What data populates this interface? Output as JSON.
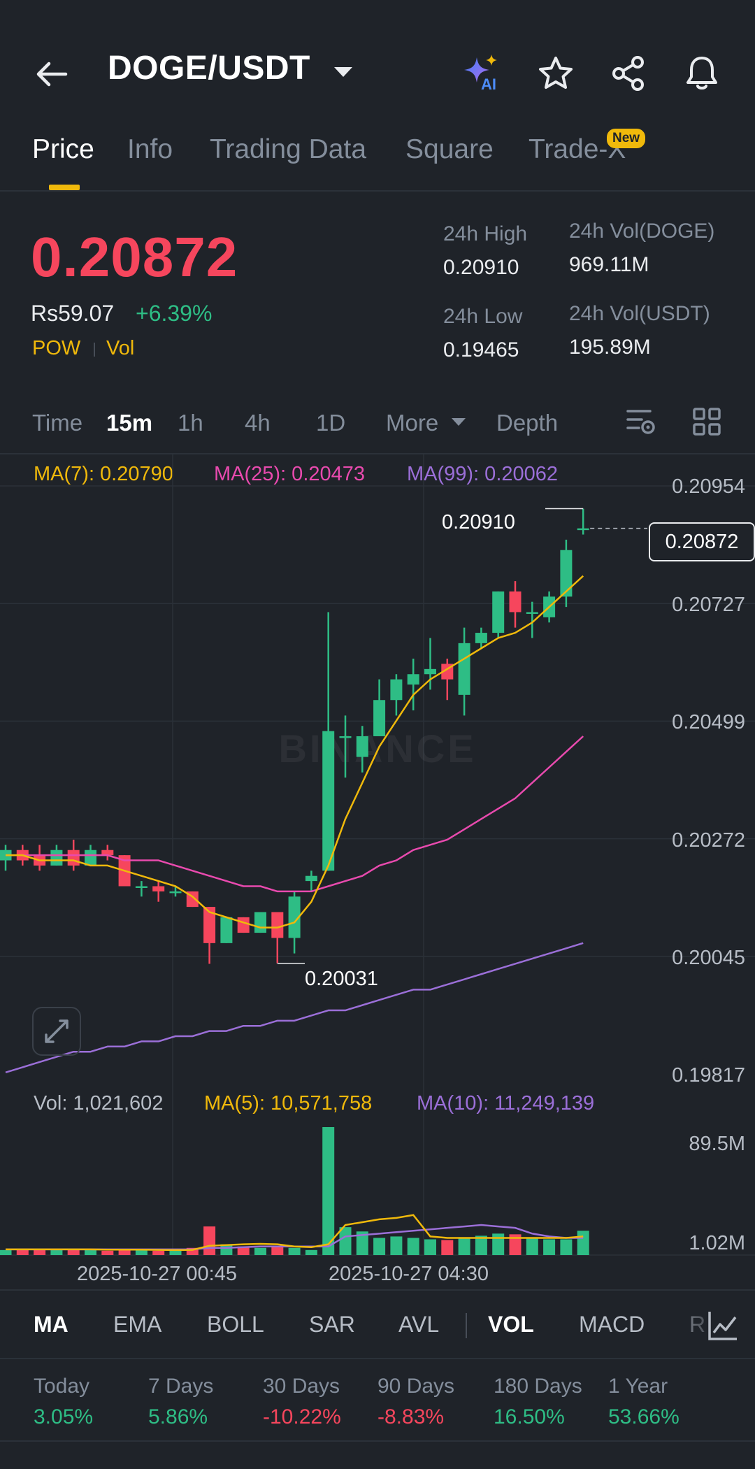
{
  "header": {
    "pair": "DOGE/USDT",
    "ai_label": "AI",
    "icons": [
      "back-arrow-icon",
      "chevron-down-icon",
      "ai-sparkle-icon",
      "star-icon",
      "share-icon",
      "bell-icon"
    ]
  },
  "tabs": [
    {
      "label": "Price",
      "active": true
    },
    {
      "label": "Info"
    },
    {
      "label": "Trading Data"
    },
    {
      "label": "Square"
    },
    {
      "label": "Trade-X",
      "badge": "New"
    }
  ],
  "ticker": {
    "price": "0.20872",
    "fiat": "Rs59.07",
    "change": "+6.39%",
    "tags": [
      "POW",
      "Vol"
    ],
    "high_label": "24h High",
    "high_value": "0.20910",
    "low_label": "24h Low",
    "low_value": "0.19465",
    "vol_base_label": "24h Vol(DOGE)",
    "vol_base_value": "969.11M",
    "vol_quote_label": "24h Vol(USDT)",
    "vol_quote_value": "195.89M"
  },
  "timeframes": [
    "Time",
    "15m",
    "1h",
    "4h",
    "1D",
    "More",
    "Depth"
  ],
  "active_timeframe": "15m",
  "ma_legend": {
    "ma7": "MA(7): 0.20790",
    "ma25": "MA(25): 0.20473",
    "ma99": "MA(99): 0.20062"
  },
  "vol_legend": {
    "vol": "Vol: 1,021,602",
    "ma5": "MA(5): 10,571,758",
    "ma10": "MA(10): 11,249,139"
  },
  "watermark": "BINANCE",
  "colors": {
    "up": "#2ebd85",
    "down": "#f6465d",
    "accent": "#f0b90b",
    "ma7": "#f0b90b",
    "ma25": "#e84aae",
    "ma99": "#9b6fd8"
  },
  "chart_data": {
    "type": "candlestick",
    "y_ticks": [
      "0.20954",
      "0.20727",
      "0.20499",
      "0.20272",
      "0.20045",
      "0.19817"
    ],
    "ylim": [
      0.19817,
      0.20954
    ],
    "current_price": "0.20872",
    "high_marker": "0.20910",
    "low_marker": "0.20031",
    "x_ticks": [
      "2025-10-27 00:45",
      "2025-10-27 04:30"
    ],
    "candles": [
      {
        "o": 0.2023,
        "h": 0.2026,
        "l": 0.2021,
        "c": 0.2025
      },
      {
        "o": 0.2025,
        "h": 0.2026,
        "l": 0.2022,
        "c": 0.2023
      },
      {
        "o": 0.2024,
        "h": 0.2026,
        "l": 0.2021,
        "c": 0.2022
      },
      {
        "o": 0.2022,
        "h": 0.2026,
        "l": 0.2022,
        "c": 0.2025
      },
      {
        "o": 0.2025,
        "h": 0.2027,
        "l": 0.2021,
        "c": 0.2022
      },
      {
        "o": 0.2022,
        "h": 0.2026,
        "l": 0.2022,
        "c": 0.2025
      },
      {
        "o": 0.2025,
        "h": 0.2026,
        "l": 0.2023,
        "c": 0.2024
      },
      {
        "o": 0.2024,
        "h": 0.2024,
        "l": 0.2018,
        "c": 0.2018
      },
      {
        "o": 0.2018,
        "h": 0.2019,
        "l": 0.2016,
        "c": 0.2018
      },
      {
        "o": 0.2018,
        "h": 0.2019,
        "l": 0.2015,
        "c": 0.2017
      },
      {
        "o": 0.2017,
        "h": 0.2018,
        "l": 0.2016,
        "c": 0.2017
      },
      {
        "o": 0.2017,
        "h": 0.2017,
        "l": 0.2014,
        "c": 0.2014
      },
      {
        "o": 0.2014,
        "h": 0.2014,
        "l": 0.2003,
        "c": 0.2007
      },
      {
        "o": 0.2007,
        "h": 0.2012,
        "l": 0.2007,
        "c": 0.2012
      },
      {
        "o": 0.2012,
        "h": 0.2012,
        "l": 0.2009,
        "c": 0.2009
      },
      {
        "o": 0.2009,
        "h": 0.2013,
        "l": 0.2009,
        "c": 0.2013
      },
      {
        "o": 0.2013,
        "h": 0.2013,
        "l": 0.20031,
        "c": 0.2008
      },
      {
        "o": 0.2008,
        "h": 0.2017,
        "l": 0.2005,
        "c": 0.2016
      },
      {
        "o": 0.2019,
        "h": 0.2021,
        "l": 0.2017,
        "c": 0.202
      },
      {
        "o": 0.2021,
        "h": 0.2071,
        "l": 0.2021,
        "c": 0.2048
      },
      {
        "o": 0.2047,
        "h": 0.2051,
        "l": 0.2039,
        "c": 0.2047
      },
      {
        "o": 0.2043,
        "h": 0.2049,
        "l": 0.204,
        "c": 0.2047
      },
      {
        "o": 0.2047,
        "h": 0.2058,
        "l": 0.2047,
        "c": 0.2054
      },
      {
        "o": 0.2054,
        "h": 0.2059,
        "l": 0.2051,
        "c": 0.2058
      },
      {
        "o": 0.2057,
        "h": 0.2062,
        "l": 0.2052,
        "c": 0.2059
      },
      {
        "o": 0.2059,
        "h": 0.2066,
        "l": 0.2056,
        "c": 0.206
      },
      {
        "o": 0.2061,
        "h": 0.2062,
        "l": 0.2054,
        "c": 0.2058
      },
      {
        "o": 0.2055,
        "h": 0.2068,
        "l": 0.2051,
        "c": 0.2065
      },
      {
        "o": 0.2065,
        "h": 0.2068,
        "l": 0.2064,
        "c": 0.2067
      },
      {
        "o": 0.2067,
        "h": 0.2075,
        "l": 0.2066,
        "c": 0.2075
      },
      {
        "o": 0.2075,
        "h": 0.2077,
        "l": 0.2068,
        "c": 0.2071
      },
      {
        "o": 0.2071,
        "h": 0.2073,
        "l": 0.2066,
        "c": 0.2071
      },
      {
        "o": 0.207,
        "h": 0.2075,
        "l": 0.2069,
        "c": 0.2074
      },
      {
        "o": 0.2074,
        "h": 0.2085,
        "l": 0.2072,
        "c": 0.2083
      },
      {
        "o": 0.2087,
        "h": 0.2091,
        "l": 0.2086,
        "c": 0.20872
      }
    ],
    "ma7": [
      0.2024,
      0.2024,
      0.2023,
      0.2023,
      0.2023,
      0.2022,
      0.2022,
      0.2021,
      0.202,
      0.2019,
      0.2018,
      0.2016,
      0.2013,
      0.2012,
      0.2011,
      0.201,
      0.201,
      0.2011,
      0.2015,
      0.2022,
      0.2031,
      0.2038,
      0.2045,
      0.205,
      0.2055,
      0.2058,
      0.206,
      0.2062,
      0.2064,
      0.2066,
      0.2067,
      0.2069,
      0.2072,
      0.2075,
      0.2078
    ],
    "ma25": [
      0.2024,
      0.2024,
      0.2024,
      0.2024,
      0.2024,
      0.2024,
      0.2024,
      0.2023,
      0.2023,
      0.2023,
      0.2022,
      0.2021,
      0.202,
      0.2019,
      0.2018,
      0.2018,
      0.2017,
      0.2017,
      0.2017,
      0.2018,
      0.2019,
      0.202,
      0.2022,
      0.2023,
      0.2025,
      0.2026,
      0.2027,
      0.2029,
      0.2031,
      0.2033,
      0.2035,
      0.2038,
      0.2041,
      0.2044,
      0.2047
    ],
    "ma99": [
      0.1982,
      0.1983,
      0.1984,
      0.1985,
      0.1986,
      0.1986,
      0.1987,
      0.1987,
      0.1988,
      0.1988,
      0.1989,
      0.1989,
      0.199,
      0.199,
      0.1991,
      0.1991,
      0.1992,
      0.1992,
      0.1993,
      0.1994,
      0.1994,
      0.1995,
      0.1996,
      0.1997,
      0.1998,
      0.1998,
      0.1999,
      0.2,
      0.2001,
      0.2002,
      0.2003,
      0.2004,
      0.2005,
      0.2006,
      0.2007
    ],
    "vol_y_ticks": [
      "89.5M",
      "1.02M"
    ],
    "volumes": [
      3.5,
      4.5,
      3.8,
      4.2,
      3.5,
      3.5,
      3,
      4,
      3.5,
      3,
      3,
      5,
      20,
      7.5,
      6,
      5,
      6.5,
      5,
      3.5,
      89.5,
      19.5,
      16.5,
      12,
      13,
      12,
      11,
      10.5,
      12.5,
      13.5,
      15,
      14.5,
      12.5,
      11,
      11,
      17
    ],
    "vol_ma5": [
      4,
      4,
      4,
      4,
      4,
      4,
      3.8,
      3.8,
      3.8,
      3.6,
      3.5,
      3.6,
      6.5,
      7,
      7.5,
      7.8,
      7.5,
      6,
      5.5,
      7.5,
      21,
      23,
      25,
      26,
      28,
      13,
      12,
      12,
      12,
      12,
      12,
      12,
      12,
      12,
      13
    ],
    "vol_ma10": [
      4,
      4,
      4,
      4,
      4,
      4,
      4,
      4,
      4,
      4,
      4,
      4,
      5,
      5,
      5.5,
      6,
      6,
      6,
      6,
      6,
      13,
      14,
      15,
      16,
      17,
      18,
      19,
      20,
      21,
      20,
      19,
      15,
      13,
      12,
      12
    ]
  },
  "indicators": [
    "MA",
    "EMA",
    "BOLL",
    "SAR",
    "AVL",
    "VOL",
    "MACD",
    "R"
  ],
  "active_indicators": [
    "MA",
    "VOL"
  ],
  "performance": [
    {
      "label": "Today",
      "value": "3.05%",
      "dir": "up"
    },
    {
      "label": "7 Days",
      "value": "5.86%",
      "dir": "up"
    },
    {
      "label": "30 Days",
      "value": "-10.22%",
      "dir": "down"
    },
    {
      "label": "90 Days",
      "value": "-8.83%",
      "dir": "down"
    },
    {
      "label": "180 Days",
      "value": "16.50%",
      "dir": "up"
    },
    {
      "label": "1 Year",
      "value": "53.66%",
      "dir": "up"
    }
  ]
}
